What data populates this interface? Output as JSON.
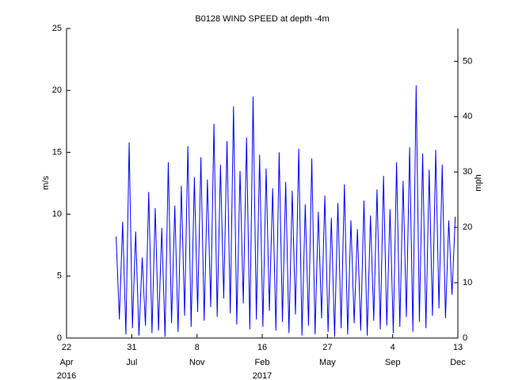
{
  "chart_data": {
    "type": "line",
    "title": "B0128 WIND SPEED at depth -4m",
    "y_label": "m/s",
    "y2_label": "mph",
    "xlim": [
      "2016-04-22",
      "2017-12-13"
    ],
    "xticks": [
      {
        "value": "2016-04-22",
        "label": "22",
        "month": "Apr",
        "year": "2016"
      },
      {
        "value": "2016-07-31",
        "label": "31",
        "month": "Jul"
      },
      {
        "value": "2016-11-08",
        "label": "8",
        "month": "Nov"
      },
      {
        "value": "2017-02-16",
        "label": "16",
        "month": "Feb",
        "year": "2017"
      },
      {
        "value": "2017-05-27",
        "label": "27",
        "month": "May"
      },
      {
        "value": "2017-09-04",
        "label": "4",
        "month": "Sep"
      },
      {
        "value": "2017-12-13",
        "label": "13",
        "month": "Dec"
      }
    ],
    "ylim": [
      0,
      25
    ],
    "yticks": [
      0,
      5,
      10,
      15,
      20,
      25
    ],
    "y2lim": [
      0,
      55.92
    ],
    "y2ticks": [
      0,
      10,
      20,
      30,
      40,
      50
    ],
    "x": [
      "2016-07-07",
      "2016-07-12",
      "2016-07-17",
      "2016-07-22",
      "2016-07-27",
      "2016-08-01",
      "2016-08-06",
      "2016-08-11",
      "2016-08-16",
      "2016-08-21",
      "2016-08-26",
      "2016-08-31",
      "2016-09-05",
      "2016-09-10",
      "2016-09-15",
      "2016-09-20",
      "2016-09-25",
      "2016-09-30",
      "2016-10-05",
      "2016-10-10",
      "2016-10-15",
      "2016-10-20",
      "2016-10-25",
      "2016-10-30",
      "2016-11-04",
      "2016-11-09",
      "2016-11-14",
      "2016-11-19",
      "2016-11-24",
      "2016-11-29",
      "2016-12-04",
      "2016-12-09",
      "2016-12-14",
      "2016-12-19",
      "2016-12-24",
      "2016-12-29",
      "2017-01-03",
      "2017-01-08",
      "2017-01-13",
      "2017-01-18",
      "2017-01-23",
      "2017-01-28",
      "2017-02-02",
      "2017-02-07",
      "2017-02-12",
      "2017-02-17",
      "2017-02-22",
      "2017-02-27",
      "2017-03-04",
      "2017-03-09",
      "2017-03-14",
      "2017-03-19",
      "2017-03-24",
      "2017-03-29",
      "2017-04-03",
      "2017-04-08",
      "2017-04-13",
      "2017-04-18",
      "2017-04-23",
      "2017-04-28",
      "2017-05-03",
      "2017-05-08",
      "2017-05-13",
      "2017-05-18",
      "2017-05-23",
      "2017-05-28",
      "2017-06-02",
      "2017-06-07",
      "2017-06-12",
      "2017-06-17",
      "2017-06-22",
      "2017-06-27",
      "2017-07-02",
      "2017-07-07",
      "2017-07-12",
      "2017-07-17",
      "2017-07-22",
      "2017-07-27",
      "2017-08-01",
      "2017-08-06",
      "2017-08-11",
      "2017-08-16",
      "2017-08-21",
      "2017-08-26",
      "2017-08-31",
      "2017-09-05",
      "2017-09-10",
      "2017-09-15",
      "2017-09-20",
      "2017-09-25",
      "2017-09-30",
      "2017-10-05",
      "2017-10-10",
      "2017-10-15",
      "2017-10-20",
      "2017-10-25",
      "2017-10-30",
      "2017-11-04",
      "2017-11-09",
      "2017-11-14",
      "2017-11-19",
      "2017-11-24",
      "2017-11-29",
      "2017-12-04",
      "2017-12-09"
    ],
    "series": [
      {
        "color": "#0000ff",
        "values": [
          8.2,
          1.5,
          9.4,
          0.3,
          15.8,
          0.8,
          8.6,
          0.2,
          6.5,
          1.0,
          11.8,
          0.4,
          10.5,
          0.6,
          8.9,
          0.1,
          14.2,
          1.2,
          10.7,
          0.5,
          12.3,
          1.8,
          15.5,
          0.9,
          13.0,
          2.1,
          14.6,
          1.4,
          12.8,
          2.5,
          17.3,
          1.7,
          14.0,
          3.2,
          15.9,
          2.0,
          18.7,
          1.1,
          13.5,
          2.8,
          16.2,
          0.7,
          19.5,
          1.5,
          14.8,
          0.9,
          13.7,
          2.2,
          12.1,
          0.6,
          15.0,
          1.3,
          12.6,
          0.4,
          11.9,
          1.9,
          15.3,
          0.2,
          10.8,
          1.0,
          14.5,
          0.3,
          10.2,
          1.6,
          11.5,
          0.5,
          9.7,
          0.1,
          10.9,
          0.8,
          12.4,
          0.3,
          9.5,
          1.2,
          8.8,
          0.6,
          11.1,
          0.2,
          9.9,
          1.4,
          12.0,
          0.7,
          13.1,
          1.0,
          10.4,
          0.4,
          14.2,
          0.9,
          12.7,
          1.7,
          15.4,
          0.5,
          20.4,
          1.3,
          14.9,
          0.8,
          13.6,
          1.8,
          15.2,
          2.4,
          14.0,
          1.6,
          9.5,
          3.5,
          9.8
        ]
      }
    ]
  }
}
